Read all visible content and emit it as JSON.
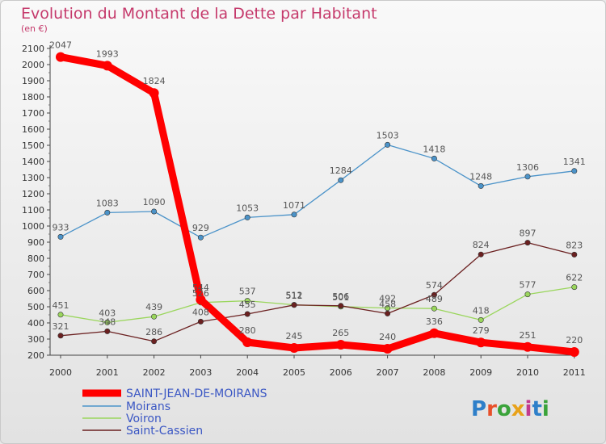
{
  "chart_data": {
    "type": "line",
    "title": "Evolution du Montant de la Dette par Habitant",
    "subtitle": "(en €)",
    "x": [
      "2000",
      "2001",
      "2002",
      "2003",
      "2004",
      "2005",
      "2006",
      "2007",
      "2008",
      "2009",
      "2010",
      "2011"
    ],
    "yticks": [
      200,
      300,
      400,
      500,
      600,
      700,
      800,
      900,
      1000,
      1100,
      1200,
      1300,
      1400,
      1500,
      1600,
      1700,
      1800,
      1900,
      2000,
      2100
    ],
    "ylim": [
      200,
      2100
    ],
    "grid": false,
    "legend_position": "bottom-left",
    "series": [
      {
        "name": "SAINT-JEAN-DE-MOIRANS",
        "color": "#ff0000",
        "values": [
          2047,
          1993,
          1824,
          544,
          280,
          245,
          265,
          240,
          336,
          279,
          251,
          220
        ]
      },
      {
        "name": "Moirans",
        "color": "#4b93c9",
        "values": [
          933,
          1083,
          1090,
          929,
          1053,
          1071,
          1284,
          1503,
          1418,
          1248,
          1306,
          1341
        ]
      },
      {
        "name": "Voiron",
        "color": "#9ad65c",
        "values": [
          451,
          403,
          439,
          526,
          537,
          512,
          501,
          492,
          489,
          418,
          577,
          622
        ]
      },
      {
        "name": "Saint-Cassien",
        "color": "#6b2020",
        "values": [
          321,
          348,
          286,
          408,
          455,
          511,
          506,
          458,
          574,
          824,
          897,
          823
        ]
      }
    ]
  },
  "brand": {
    "logo_text": "Proxiti",
    "letter_colors": [
      "#2e7fc9",
      "#e8502a",
      "#3aa33a",
      "#e8a21a",
      "#c23a8e",
      "#2e7fc9",
      "#3aa33a"
    ]
  }
}
